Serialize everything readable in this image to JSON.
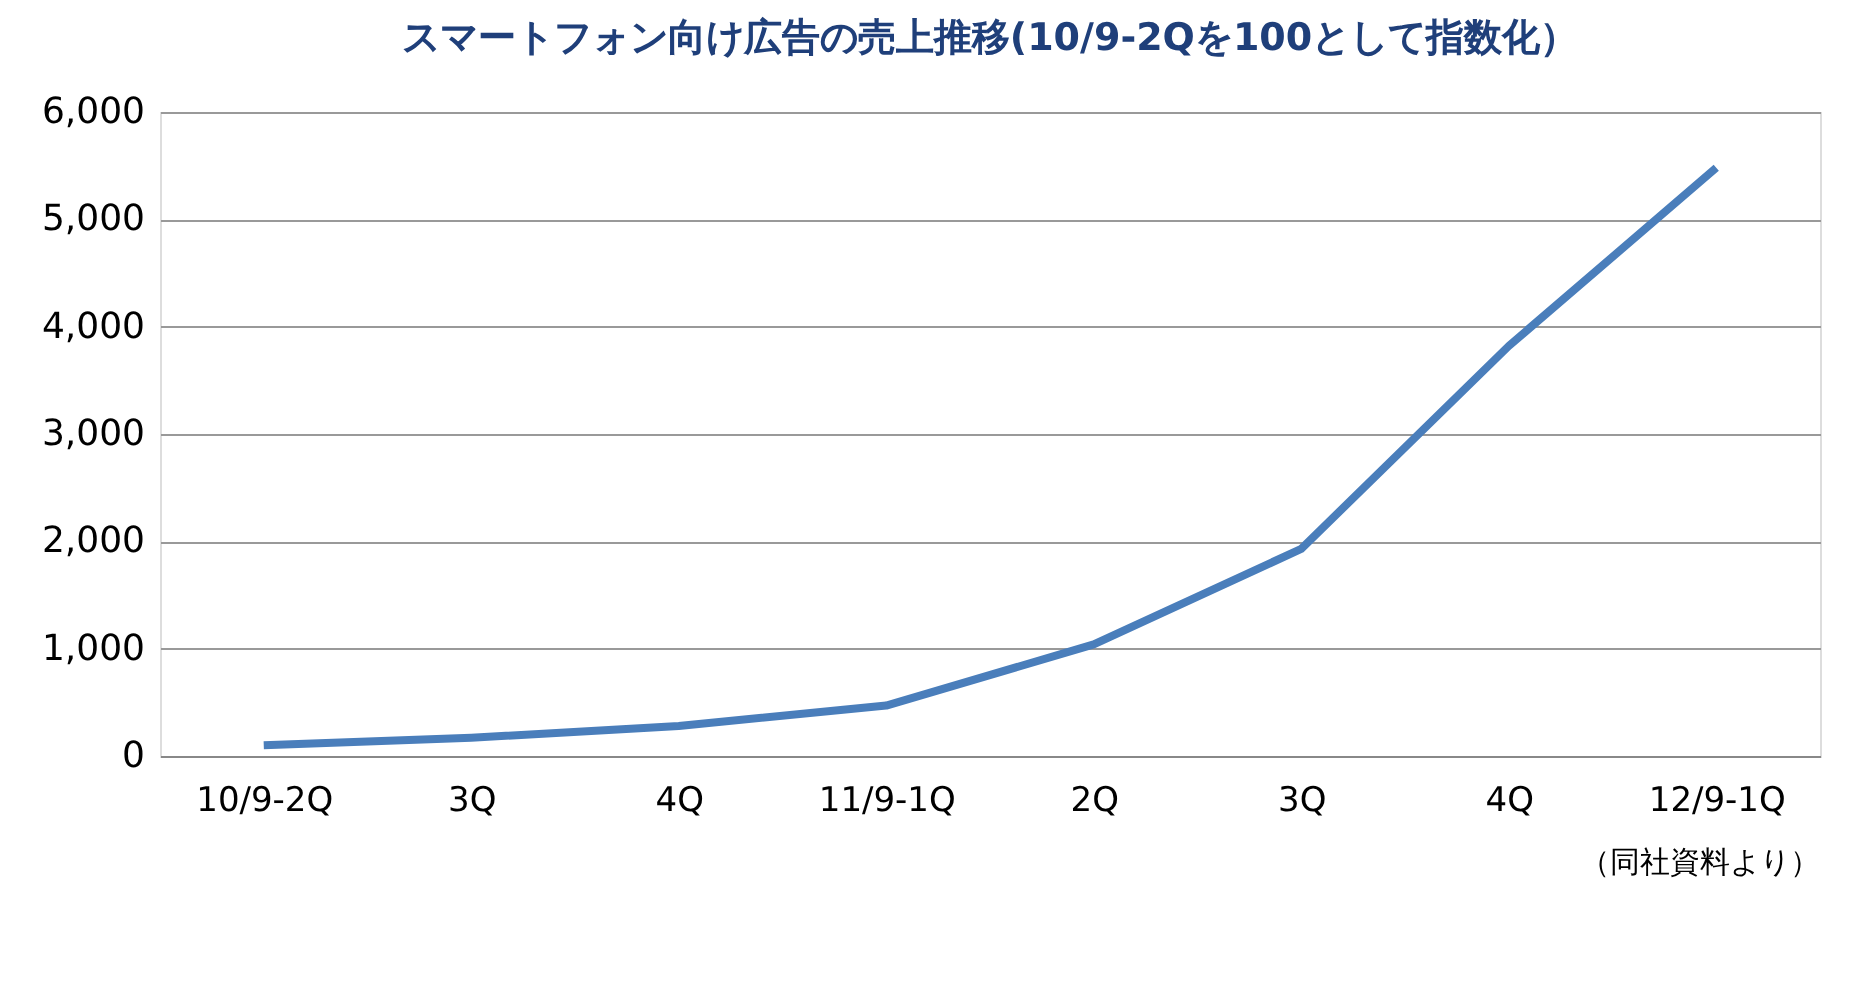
{
  "chart_data": {
    "type": "line",
    "title": "スマートフォン向け広告の売上推移(10/9-2Qを100として指数化）",
    "categories": [
      "10/9-2Q",
      "3Q",
      "4Q",
      "11/9-1Q",
      "2Q",
      "3Q",
      "4Q",
      "12/9-1Q"
    ],
    "series": [
      {
        "color": "#4a7ebb",
        "values": [
          100,
          170,
          280,
          470,
          1040,
          1930,
          3820,
          5480
        ]
      }
    ],
    "ylim": [
      0,
      6000
    ],
    "yticks": [
      {
        "value": 0,
        "label": "0"
      },
      {
        "value": 1000,
        "label": "1,000"
      },
      {
        "value": 2000,
        "label": "2,000"
      },
      {
        "value": 3000,
        "label": "3,000"
      },
      {
        "value": 4000,
        "label": "4,000"
      },
      {
        "value": 5000,
        "label": "5,000"
      },
      {
        "value": 6000,
        "label": "6,000"
      }
    ],
    "grid": "y",
    "marker": "none",
    "line_style": "solid",
    "annotations": [
      "（同社資料より）"
    ]
  }
}
